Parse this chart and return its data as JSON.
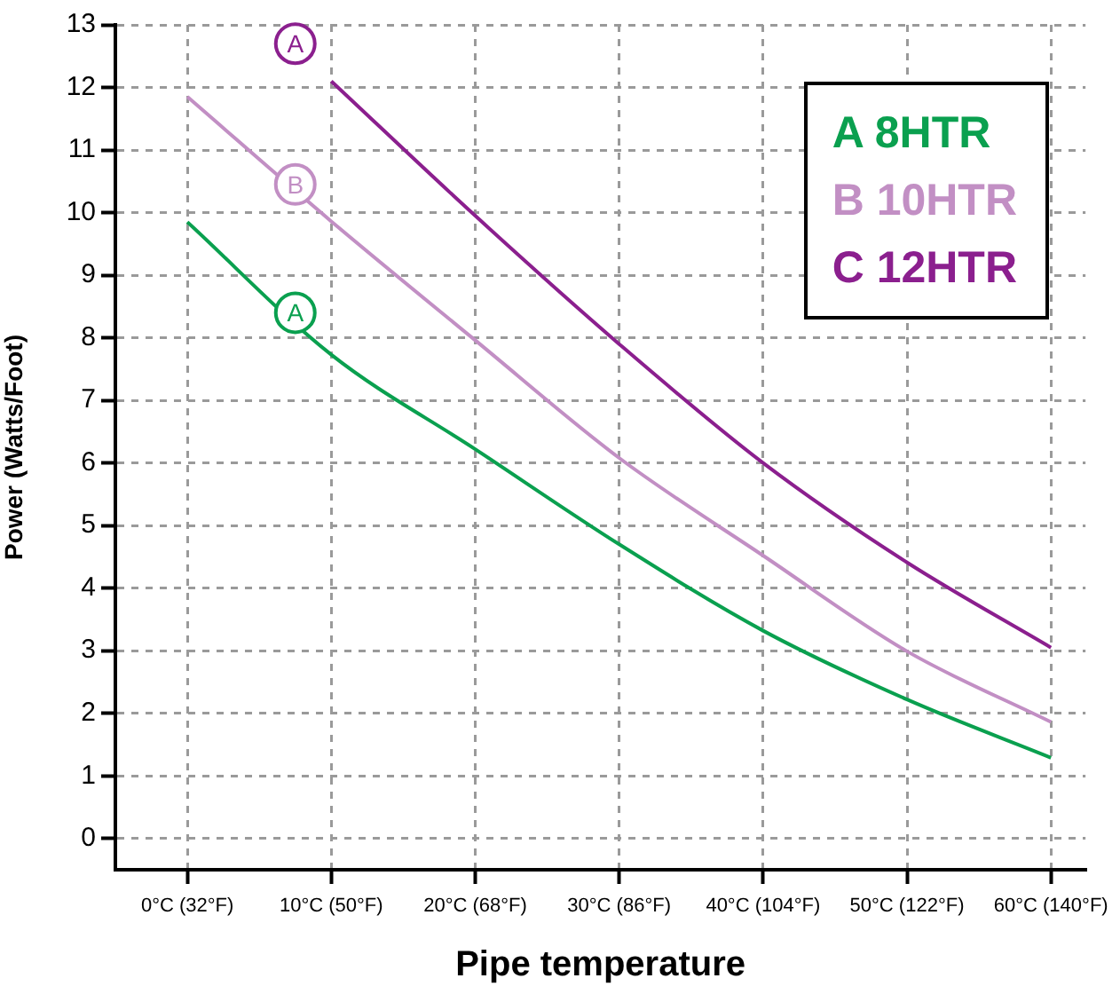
{
  "chart_data": {
    "type": "line",
    "xlabel": "Pipe temperature",
    "ylabel": "Power (Watts/Foot)",
    "categories": [
      "0°C (32°F)",
      "10°C (50°F)",
      "20°C (68°F)",
      "30°C (86°F)",
      "40°C (104°F)",
      "50°C (122°F)",
      "60°C (140°F)"
    ],
    "ylim": [
      -0.5,
      13
    ],
    "yticks": [
      0,
      1,
      2,
      3,
      4,
      5,
      6,
      7,
      8,
      9,
      10,
      11,
      12,
      13
    ],
    "grid": true,
    "legend": "top right",
    "marker": "none",
    "line_style": "solid",
    "series": [
      {
        "name": "A 8HTR",
        "color": "#0aa04f",
        "values": [
          9.85,
          7.73,
          6.22,
          4.7,
          3.32,
          2.22,
          1.29
        ]
      },
      {
        "name": "B 10HTR",
        "color": "#c28fc4",
        "values": [
          11.85,
          9.86,
          7.96,
          6.08,
          4.52,
          2.99,
          1.86
        ]
      },
      {
        "name": "C 12HTR",
        "color": "#8b1f8e",
        "values": [
          null,
          12.1,
          9.95,
          7.9,
          6.0,
          4.41,
          3.05
        ]
      }
    ],
    "annotations": [
      {
        "text": "A",
        "y": 12.7
      },
      {
        "text": "B",
        "y": 10.45
      },
      {
        "text": "A",
        "y": 8.4
      }
    ]
  }
}
